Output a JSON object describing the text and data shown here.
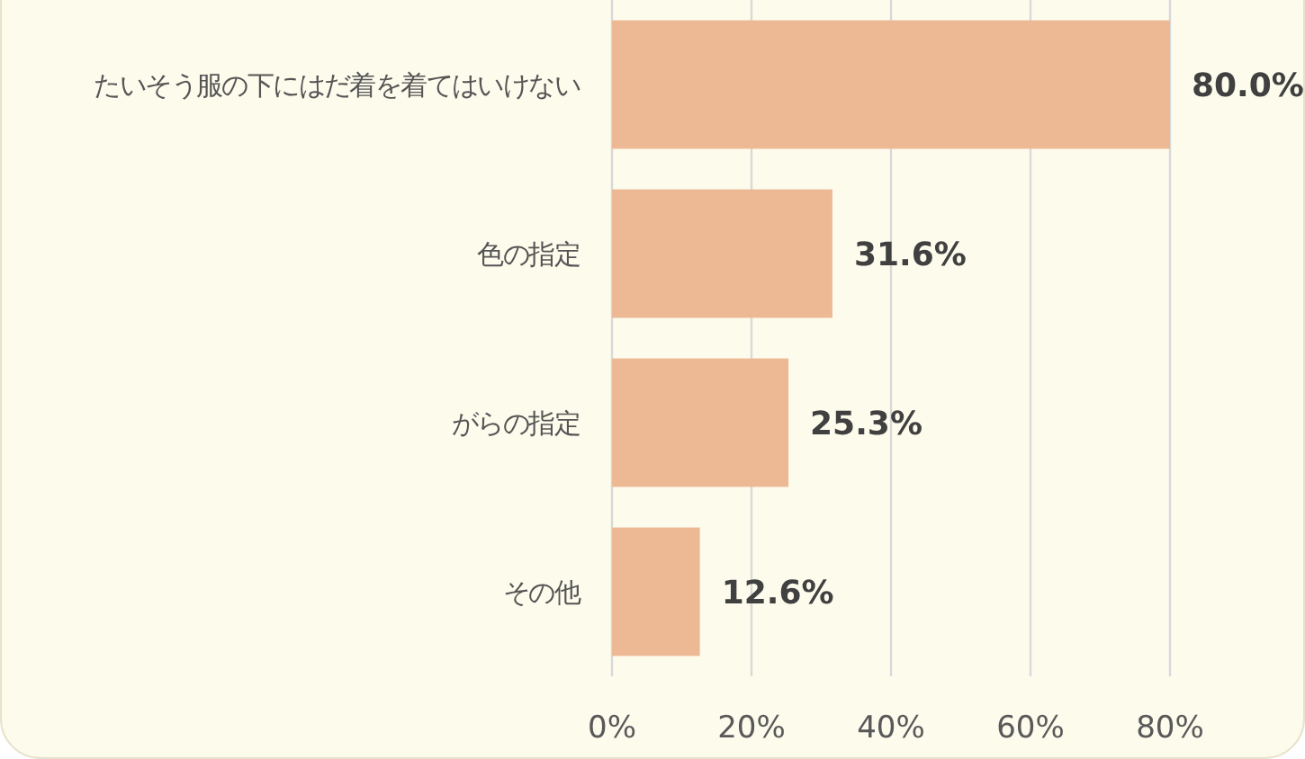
{
  "chart_data": {
    "type": "bar",
    "orientation": "horizontal",
    "categories": [
      "たいそう服の下にはだ着を着てはいけない",
      "色の指定",
      "がらの指定",
      "その他"
    ],
    "values": [
      80.0,
      31.6,
      25.3,
      12.6
    ],
    "value_labels": [
      "80.0%",
      "31.6%",
      "25.3%",
      "12.6%"
    ],
    "color": "#edb995",
    "xlim": [
      0,
      80
    ],
    "xticks": [
      {
        "value": 0,
        "label": "0%"
      },
      {
        "value": 20,
        "label": "20%"
      },
      {
        "value": 40,
        "label": "40%"
      },
      {
        "value": 60,
        "label": "60%"
      },
      {
        "value": 80,
        "label": "80%"
      }
    ],
    "grid": "x"
  }
}
